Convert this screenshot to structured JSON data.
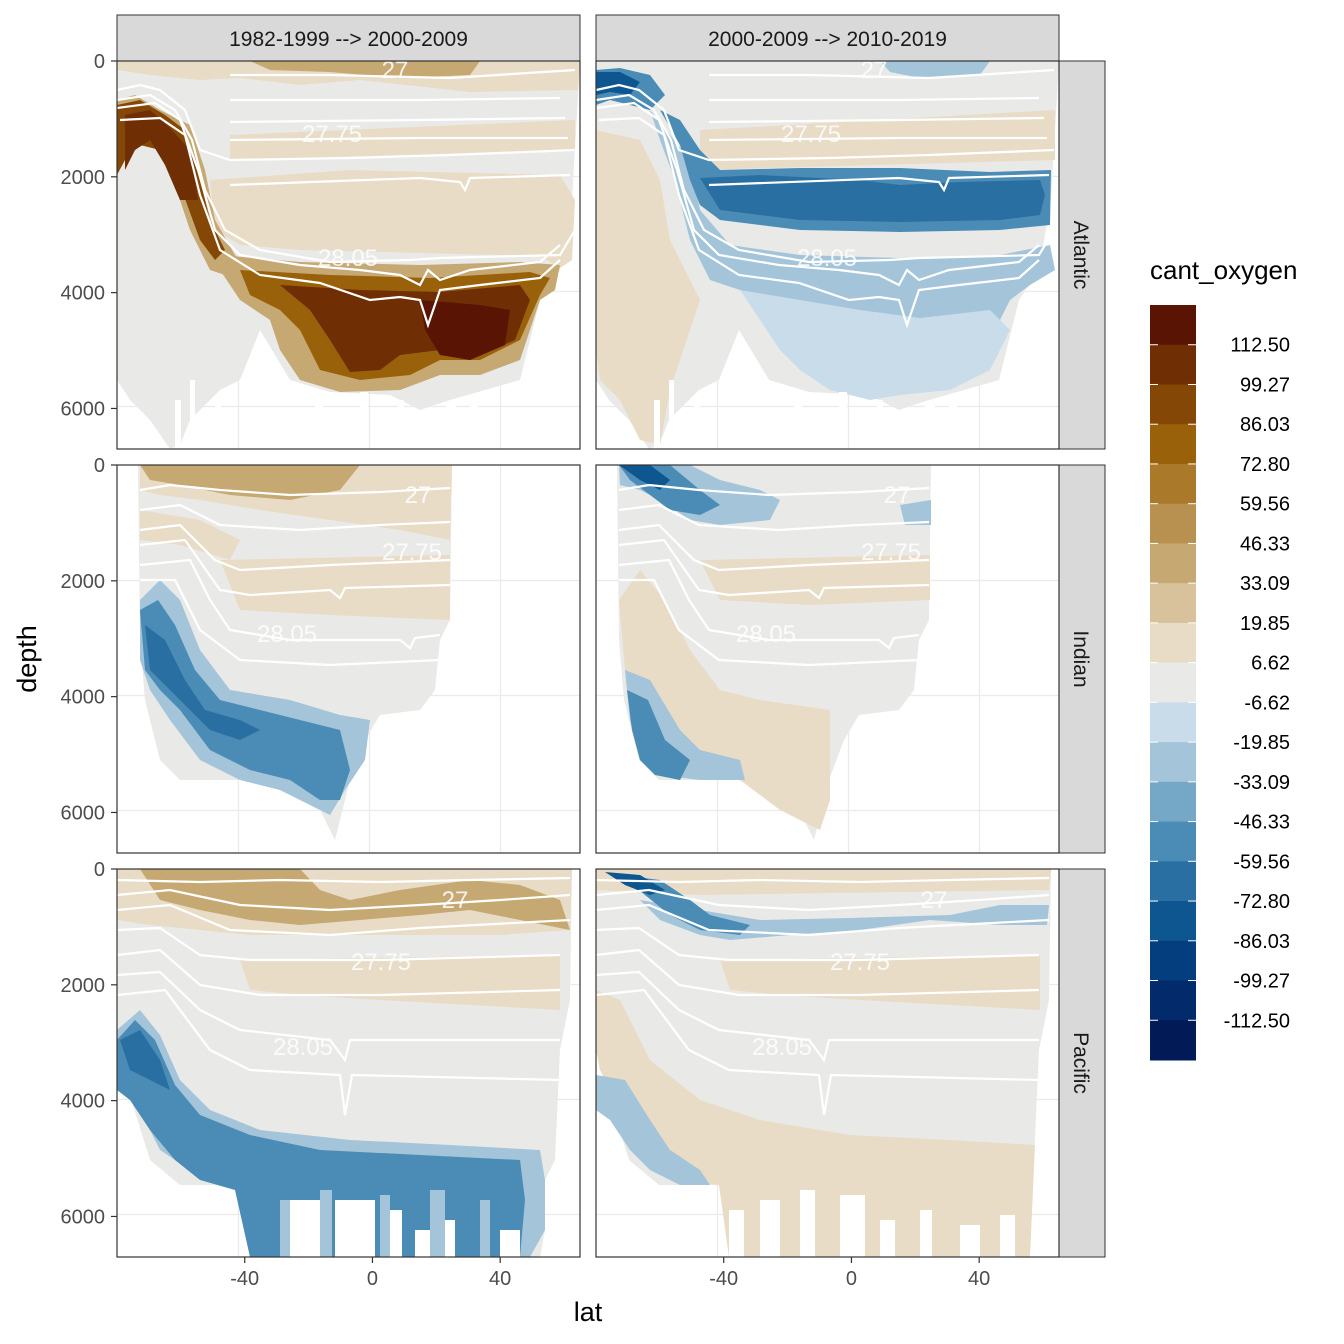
{
  "chart_data": {
    "type": "faceted-contour",
    "xlabel": "lat",
    "ylabel": "depth",
    "x_ticks": [
      -40,
      0,
      40
    ],
    "y_ticks": [
      0,
      2000,
      4000,
      6000
    ],
    "xlim": [
      -80,
      65
    ],
    "ylim": [
      0,
      6700
    ],
    "y_reversed": true,
    "columns": [
      "1982-1999 --> 2000-2009",
      "2000-2009 --> 2010-2019"
    ],
    "rows": [
      "Atlantic",
      "Indian",
      "Pacific"
    ],
    "contour_labels": [
      "27",
      "27.75",
      "28.05"
    ],
    "legend": {
      "title": "cant_oxygen",
      "breaks": [
        "112.50",
        "99.27",
        "86.03",
        "72.80",
        "59.56",
        "46.33",
        "33.09",
        "19.85",
        "6.62",
        "-6.62",
        "-19.85",
        "-33.09",
        "-46.33",
        "-59.56",
        "-72.80",
        "-86.03",
        "-99.27",
        "-112.50"
      ],
      "colors": [
        "#5a1404",
        "#6f2e04",
        "#844706",
        "#9a610b",
        "#aa7a2a",
        "#b89050",
        "#c6a873",
        "#d7c29b",
        "#e8dcc6",
        "#e9eae8",
        "#c8dcea",
        "#a3c4d9",
        "#74a8c6",
        "#4a8cb5",
        "#2a6fa2",
        "#0e5690",
        "#043e7f",
        "#032b6c",
        "#021a55"
      ]
    },
    "facets": [
      {
        "ocean": "Atlantic",
        "period": "1982-1999 --> 2000-2009",
        "signal": "strong positive (brown) deep water below 3500 m, positive band 2000-3000 m, positive southern intermediate water"
      },
      {
        "ocean": "Atlantic",
        "period": "2000-2009 --> 2010-2019",
        "signal": "strong negative (blue) band 2000-3500 m, weak negative abyss, weak positive intermediate"
      },
      {
        "ocean": "Indian",
        "period": "1982-1999 --> 2000-2009",
        "signal": "positive upper ocean, negative southern bottom water"
      },
      {
        "ocean": "Indian",
        "period": "2000-2009 --> 2010-2019",
        "signal": "negative thermocline band, weak positive deep"
      },
      {
        "ocean": "Pacific",
        "period": "1982-1999 --> 2000-2009",
        "signal": "positive upper ocean, negative bottom water below 4500 m"
      },
      {
        "ocean": "Pacific",
        "period": "2000-2009 --> 2010-2019",
        "signal": "negative thermocline band, weak positive abyss"
      }
    ]
  }
}
